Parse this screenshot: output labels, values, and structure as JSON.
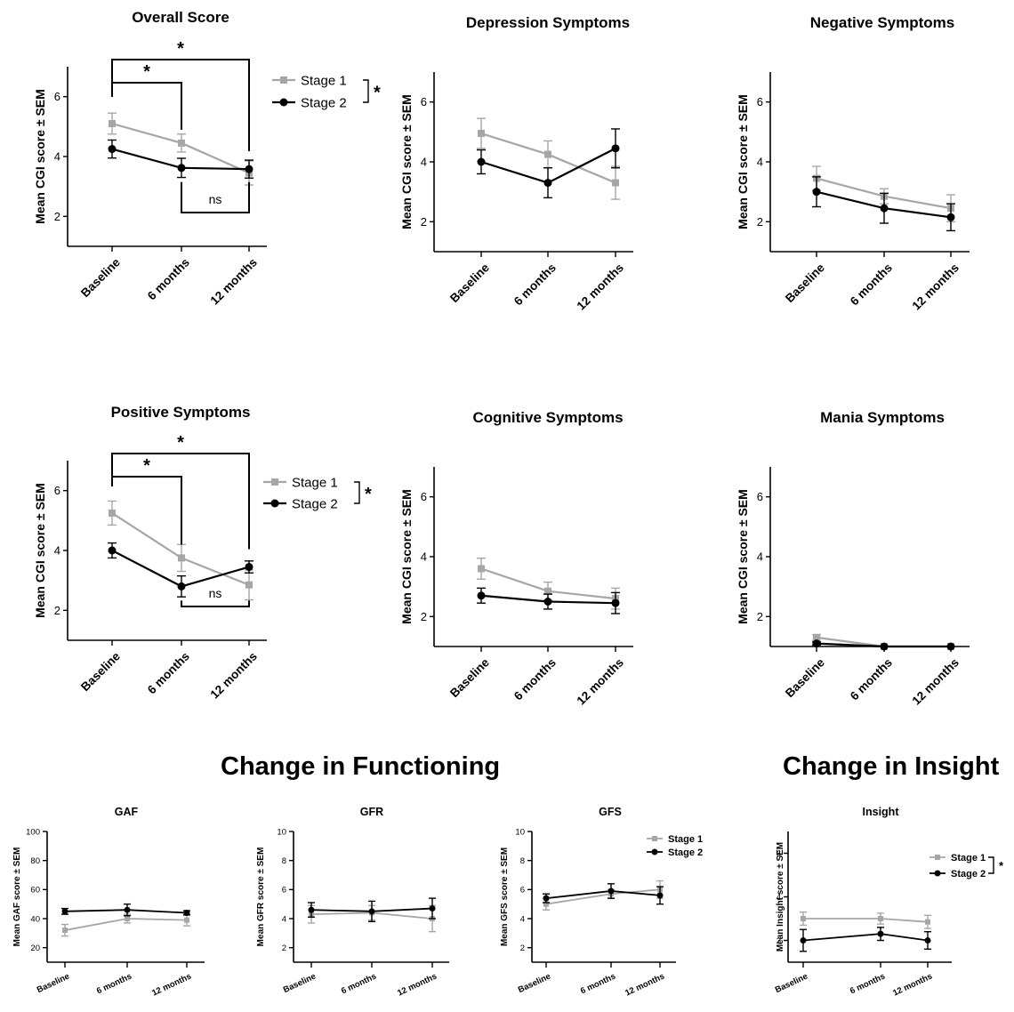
{
  "colors": {
    "stage1": "#a6a6a6",
    "stage2": "#000000",
    "axis": "#000000"
  },
  "sections": {
    "functioning": "Change in Functioning",
    "insight": "Change in Insight"
  },
  "chart_data": [
    {
      "id": "overall",
      "type": "line",
      "title": "Overall Score",
      "xlabel": "",
      "ylabel": "Mean CGI score ± SEM",
      "categories": [
        "Baseline",
        "6 months",
        "12 months"
      ],
      "ylim": [
        1,
        7
      ],
      "yticks": [
        2,
        4,
        6
      ],
      "series": [
        {
          "name": "Stage 1",
          "marker": "square",
          "values": [
            5.1,
            4.45,
            3.45
          ],
          "errors": [
            0.35,
            0.3,
            0.4
          ]
        },
        {
          "name": "Stage 2",
          "marker": "circle",
          "values": [
            4.25,
            3.62,
            3.58
          ],
          "errors": [
            0.3,
            0.32,
            0.3
          ]
        }
      ],
      "legend": "right",
      "annotations": [
        {
          "type": "bracket",
          "from": "Baseline",
          "to": "6 months",
          "side": "top",
          "label": "*"
        },
        {
          "type": "bracket",
          "from": "Baseline",
          "to": "12 months",
          "side": "top",
          "label": "*"
        },
        {
          "type": "bracket",
          "from": "6 months",
          "to": "12 months",
          "side": "bottom",
          "label": "ns"
        },
        {
          "type": "legend-bracket",
          "label": "*"
        }
      ]
    },
    {
      "id": "depression",
      "type": "line",
      "title": "Depression Symptoms",
      "xlabel": "",
      "ylabel": "Mean CGI score ± SEM",
      "categories": [
        "Baseline",
        "6 months",
        "12 months"
      ],
      "ylim": [
        1,
        7
      ],
      "yticks": [
        2,
        4,
        6
      ],
      "series": [
        {
          "name": "Stage 1",
          "marker": "square",
          "values": [
            4.95,
            4.25,
            3.3
          ],
          "errors": [
            0.5,
            0.45,
            0.55
          ]
        },
        {
          "name": "Stage 2",
          "marker": "circle",
          "values": [
            4.0,
            3.3,
            4.45
          ],
          "errors": [
            0.4,
            0.5,
            0.65
          ]
        }
      ]
    },
    {
      "id": "negative",
      "type": "line",
      "title": "Negative Symptoms",
      "xlabel": "",
      "ylabel": "Mean CGI score ± SEM",
      "categories": [
        "Baseline",
        "6 months",
        "12 months"
      ],
      "ylim": [
        1,
        7
      ],
      "yticks": [
        2,
        4,
        6
      ],
      "series": [
        {
          "name": "Stage 1",
          "marker": "square",
          "values": [
            3.45,
            2.85,
            2.45
          ],
          "errors": [
            0.4,
            0.25,
            0.45
          ]
        },
        {
          "name": "Stage 2",
          "marker": "circle",
          "values": [
            3.0,
            2.45,
            2.15
          ],
          "errors": [
            0.5,
            0.5,
            0.45
          ]
        }
      ]
    },
    {
      "id": "positive",
      "type": "line",
      "title": "Positive Symptoms",
      "xlabel": "",
      "ylabel": "Mean CGI score ± SEM",
      "categories": [
        "Baseline",
        "6 months",
        "12 months"
      ],
      "ylim": [
        1,
        7
      ],
      "yticks": [
        2,
        4,
        6
      ],
      "series": [
        {
          "name": "Stage 1",
          "marker": "square",
          "values": [
            5.25,
            3.75,
            2.85
          ],
          "errors": [
            0.4,
            0.45,
            0.5
          ]
        },
        {
          "name": "Stage 2",
          "marker": "circle",
          "values": [
            4.0,
            2.8,
            3.45
          ],
          "errors": [
            0.25,
            0.35,
            0.2
          ]
        }
      ],
      "legend": "right",
      "annotations": [
        {
          "type": "bracket",
          "from": "Baseline",
          "to": "6 months",
          "side": "top",
          "label": "*"
        },
        {
          "type": "bracket",
          "from": "Baseline",
          "to": "12 months",
          "side": "top",
          "label": "*"
        },
        {
          "type": "bracket",
          "from": "6 months",
          "to": "12 months",
          "side": "bottom",
          "label": "ns"
        },
        {
          "type": "legend-bracket",
          "label": "*"
        }
      ]
    },
    {
      "id": "cognitive",
      "type": "line",
      "title": "Cognitive Symptoms",
      "xlabel": "",
      "ylabel": "Mean CGI score ± SEM",
      "categories": [
        "Baseline",
        "6 months",
        "12 months"
      ],
      "ylim": [
        1,
        7
      ],
      "yticks": [
        2,
        4,
        6
      ],
      "series": [
        {
          "name": "Stage 1",
          "marker": "square",
          "values": [
            3.6,
            2.85,
            2.6
          ],
          "errors": [
            0.35,
            0.3,
            0.35
          ]
        },
        {
          "name": "Stage 2",
          "marker": "circle",
          "values": [
            2.7,
            2.5,
            2.45
          ],
          "errors": [
            0.25,
            0.25,
            0.35
          ]
        }
      ]
    },
    {
      "id": "mania",
      "type": "line",
      "title": "Mania Symptoms",
      "xlabel": "",
      "ylabel": "Mean CGI score ± SEM",
      "categories": [
        "Baseline",
        "6 months",
        "12 months"
      ],
      "ylim": [
        1,
        7
      ],
      "yticks": [
        2,
        4,
        6
      ],
      "series": [
        {
          "name": "Stage 1",
          "marker": "square",
          "values": [
            1.3,
            1.0,
            1.0
          ],
          "errors": [
            0.1,
            0.0,
            0.0
          ]
        },
        {
          "name": "Stage 2",
          "marker": "circle",
          "values": [
            1.1,
            1.0,
            1.0
          ],
          "errors": [
            0.05,
            0.0,
            0.0
          ]
        }
      ]
    },
    {
      "id": "gaf",
      "type": "line",
      "title": "GAF",
      "xlabel": "",
      "ylabel": "Mean GAF score ± SEM",
      "categories": [
        "Baseline",
        "6 months",
        "12 months"
      ],
      "ylim": [
        10,
        100
      ],
      "yticks": [
        20,
        40,
        60,
        80,
        100
      ],
      "series": [
        {
          "name": "Stage 1",
          "marker": "square",
          "values": [
            32,
            40,
            39
          ],
          "errors": [
            4,
            3,
            4
          ]
        },
        {
          "name": "Stage 2",
          "marker": "circle",
          "values": [
            45,
            46,
            44
          ],
          "errors": [
            2,
            4,
            1.5
          ]
        }
      ]
    },
    {
      "id": "gfr",
      "type": "line",
      "title": "GFR",
      "xlabel": "",
      "ylabel": "Mean GFR score ± SEM",
      "categories": [
        "Baseline",
        "6 months",
        "12 months"
      ],
      "ylim": [
        1,
        10
      ],
      "yticks": [
        2,
        4,
        6,
        8,
        10
      ],
      "series": [
        {
          "name": "Stage 1",
          "marker": "square",
          "values": [
            4.3,
            4.4,
            4.0
          ],
          "errors": [
            0.6,
            0.5,
            0.9
          ]
        },
        {
          "name": "Stage 2",
          "marker": "circle",
          "values": [
            4.6,
            4.5,
            4.7
          ],
          "errors": [
            0.5,
            0.7,
            0.7
          ]
        }
      ]
    },
    {
      "id": "gfs",
      "type": "line",
      "title": "GFS",
      "xlabel": "",
      "ylabel": "Mean GFS score ± SEM",
      "categories": [
        "Baseline",
        "6 months",
        "12 months"
      ],
      "ylim": [
        1,
        10
      ],
      "yticks": [
        2,
        4,
        6,
        8,
        10
      ],
      "series": [
        {
          "name": "Stage 1",
          "marker": "square",
          "values": [
            5.0,
            5.7,
            6.0
          ],
          "errors": [
            0.4,
            0.3,
            0.6
          ]
        },
        {
          "name": "Stage 2",
          "marker": "circle",
          "values": [
            5.4,
            5.9,
            5.6
          ],
          "errors": [
            0.3,
            0.5,
            0.6
          ]
        }
      ],
      "legend": "top-right"
    },
    {
      "id": "insight",
      "type": "line",
      "title": "Insight",
      "xlabel": "",
      "ylabel": "Mean Insight score ± SEM",
      "categories": [
        "Baseline",
        "6 months",
        "12 months"
      ],
      "ylim": [
        1,
        7
      ],
      "yticks": [
        2,
        4,
        6
      ],
      "series": [
        {
          "name": "Stage 1",
          "marker": "square",
          "values": [
            3.0,
            3.0,
            2.85
          ],
          "errors": [
            0.3,
            0.25,
            0.3
          ]
        },
        {
          "name": "Stage 2",
          "marker": "circle",
          "values": [
            2.0,
            2.3,
            2.0
          ],
          "errors": [
            0.5,
            0.3,
            0.4
          ]
        }
      ],
      "legend": "top-right",
      "annotations": [
        {
          "type": "legend-bracket",
          "label": "*"
        }
      ]
    }
  ]
}
